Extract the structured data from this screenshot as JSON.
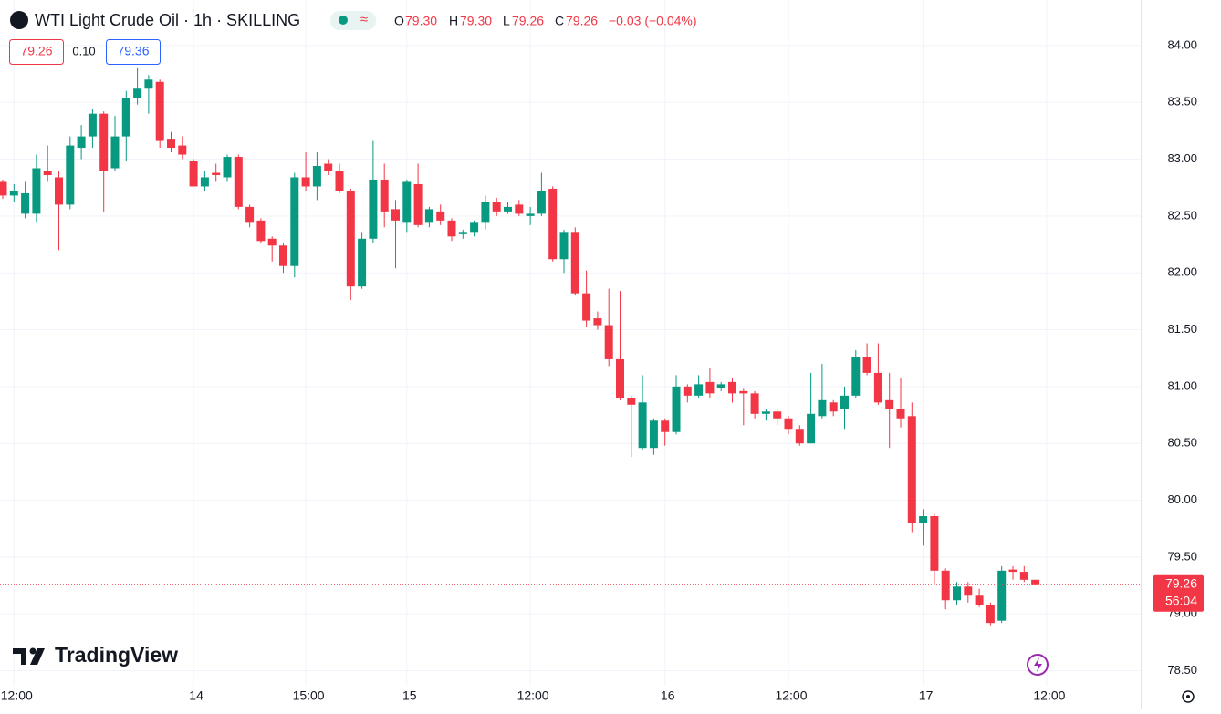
{
  "header": {
    "symbol": "WTI Light Crude Oil · 1h · SKILLING",
    "open_label": "O",
    "open": "79.30",
    "high_label": "H",
    "high": "79.30",
    "low_label": "L",
    "low": "79.26",
    "close_label": "C",
    "close": "79.26",
    "change": "−0.03 (−0.04%)",
    "bid": "79.26",
    "spread": "0.10",
    "ask": "79.36",
    "brand": "TradingView"
  },
  "chart_data": {
    "type": "candlestick",
    "up_color": "#089981",
    "down_color": "#f23645",
    "grid": true,
    "ylim": [
      78.4,
      84.4
    ],
    "yticks": [
      {
        "value": 78.5,
        "label": "78.50"
      },
      {
        "value": 79,
        "label": "79.00"
      },
      {
        "value": 79.5,
        "label": "79.50"
      },
      {
        "value": 80,
        "label": "80.00"
      },
      {
        "value": 80.5,
        "label": "80.50"
      },
      {
        "value": 81,
        "label": "81.00"
      },
      {
        "value": 81.5,
        "label": "81.50"
      },
      {
        "value": 82,
        "label": "82.00"
      },
      {
        "value": 82.5,
        "label": "82.50"
      },
      {
        "value": 83,
        "label": "83.00"
      },
      {
        "value": 83.5,
        "label": "83.50"
      },
      {
        "value": 84,
        "label": "84.00"
      }
    ],
    "categories": [
      null,
      "12:00",
      null,
      null,
      null,
      null,
      null,
      null,
      null,
      null,
      null,
      null,
      null,
      null,
      null,
      null,
      null,
      "14",
      null,
      null,
      null,
      null,
      null,
      null,
      null,
      null,
      null,
      "15:00",
      null,
      null,
      null,
      null,
      null,
      null,
      null,
      null,
      "15",
      null,
      null,
      null,
      null,
      null,
      null,
      null,
      null,
      null,
      null,
      "12:00",
      null,
      null,
      null,
      null,
      null,
      null,
      null,
      null,
      null,
      null,
      null,
      "16",
      null,
      null,
      null,
      null,
      null,
      null,
      null,
      null,
      null,
      null,
      "12:00",
      null,
      null,
      null,
      null,
      null,
      null,
      null,
      null,
      null,
      null,
      null,
      "17",
      null,
      null,
      null,
      null,
      null,
      null,
      null,
      null,
      null,
      null,
      "12:00"
    ],
    "open": [
      82.8,
      82.68,
      82.52,
      82.52,
      82.9,
      82.84,
      82.6,
      83.1,
      83.2,
      83.4,
      82.92,
      83.2,
      83.54,
      83.62,
      83.68,
      83.18,
      83.12,
      82.98,
      82.76,
      82.88,
      82.84,
      83.02,
      82.58,
      82.46,
      82.3,
      82.24,
      82.06,
      82.84,
      82.76,
      82.96,
      82.9,
      82.72,
      81.88,
      82.3,
      82.82,
      82.56,
      82.44,
      82.78,
      82.44,
      82.54,
      82.46,
      82.34,
      82.36,
      82.44,
      82.62,
      82.54,
      82.6,
      82.5,
      82.52,
      82.74,
      82.12,
      82.36,
      81.82,
      81.6,
      81.54,
      81.24,
      80.9,
      80.46,
      80.46,
      80.7,
      80.6,
      81.0,
      80.92,
      81.04,
      80.99,
      81.04,
      80.96,
      80.94,
      80.76,
      80.78,
      80.72,
      80.62,
      80.5,
      80.74,
      80.86,
      80.8,
      80.92,
      81.26,
      81.12,
      80.88,
      80.8,
      80.74,
      79.8,
      79.86,
      79.38,
      79.12,
      79.24,
      79.16,
      79.08,
      78.94,
      79.39,
      79.37,
      79.3,
      null
    ],
    "high": [
      82.82,
      82.78,
      82.8,
      83.04,
      83.12,
      82.9,
      83.2,
      83.3,
      83.44,
      83.42,
      83.38,
      83.6,
      83.8,
      83.74,
      83.7,
      83.24,
      83.2,
      83.0,
      82.9,
      82.96,
      83.04,
      83.04,
      82.6,
      82.48,
      82.32,
      82.26,
      82.88,
      83.06,
      83.06,
      83.0,
      82.96,
      82.74,
      82.36,
      83.16,
      82.96,
      82.64,
      82.82,
      82.96,
      82.58,
      82.6,
      82.48,
      82.38,
      82.46,
      82.68,
      82.66,
      82.62,
      82.64,
      82.58,
      82.88,
      82.76,
      82.38,
      82.4,
      82.02,
      81.66,
      81.86,
      81.84,
      80.92,
      81.1,
      80.72,
      80.72,
      81.1,
      81.02,
      81.1,
      81.16,
      81.04,
      81.08,
      80.98,
      80.96,
      80.8,
      80.8,
      80.74,
      80.66,
      81.12,
      81.2,
      80.88,
      81.0,
      81.32,
      81.38,
      81.38,
      81.12,
      81.08,
      80.86,
      79.92,
      79.88,
      79.4,
      79.28,
      79.28,
      79.22,
      79.1,
      79.42,
      79.42,
      79.42,
      79.3,
      null
    ],
    "low": [
      82.65,
      82.62,
      82.48,
      82.44,
      82.8,
      82.2,
      82.56,
      83.0,
      83.1,
      82.54,
      82.9,
      82.98,
      83.48,
      83.4,
      83.1,
      83.06,
      83.0,
      82.76,
      82.72,
      82.8,
      82.8,
      82.56,
      82.4,
      82.26,
      82.1,
      82.0,
      81.96,
      82.72,
      82.64,
      82.86,
      82.7,
      81.76,
      81.86,
      82.26,
      82.4,
      82.04,
      82.36,
      82.4,
      82.4,
      82.42,
      82.28,
      82.3,
      82.32,
      82.38,
      82.5,
      82.52,
      82.5,
      82.42,
      82.5,
      82.1,
      82.0,
      81.8,
      81.52,
      81.5,
      81.18,
      80.88,
      80.38,
      80.44,
      80.4,
      80.48,
      80.58,
      80.86,
      80.9,
      80.9,
      80.96,
      80.86,
      80.66,
      80.72,
      80.7,
      80.66,
      80.58,
      80.48,
      80.5,
      80.72,
      80.74,
      80.62,
      80.9,
      81.1,
      80.84,
      80.46,
      80.64,
      79.72,
      79.6,
      79.26,
      79.04,
      79.08,
      79.1,
      79.06,
      78.9,
      78.92,
      79.3,
      79.28,
      79.26,
      null
    ],
    "close": [
      82.68,
      82.72,
      82.7,
      82.92,
      82.86,
      82.6,
      83.12,
      83.2,
      83.4,
      82.9,
      83.2,
      83.54,
      83.62,
      83.7,
      83.16,
      83.1,
      83.04,
      82.76,
      82.84,
      82.86,
      83.02,
      82.58,
      82.44,
      82.28,
      82.24,
      82.06,
      82.84,
      82.76,
      82.94,
      82.9,
      82.72,
      81.88,
      82.3,
      82.82,
      82.54,
      82.46,
      82.8,
      82.42,
      82.56,
      82.46,
      82.32,
      82.36,
      82.44,
      82.62,
      82.54,
      82.58,
      82.52,
      82.52,
      82.72,
      82.12,
      82.36,
      81.82,
      81.58,
      81.54,
      81.24,
      80.9,
      80.84,
      80.86,
      80.7,
      80.6,
      81.0,
      80.92,
      81.02,
      80.94,
      81.02,
      80.94,
      80.94,
      80.76,
      80.78,
      80.72,
      80.62,
      80.5,
      80.76,
      80.88,
      80.78,
      80.92,
      81.26,
      81.12,
      80.86,
      80.8,
      80.72,
      79.8,
      79.86,
      79.38,
      79.12,
      79.24,
      79.16,
      79.08,
      78.92,
      79.38,
      79.37,
      79.3,
      79.26,
      null
    ],
    "price_line": 79.26,
    "countdown": "56:04"
  }
}
